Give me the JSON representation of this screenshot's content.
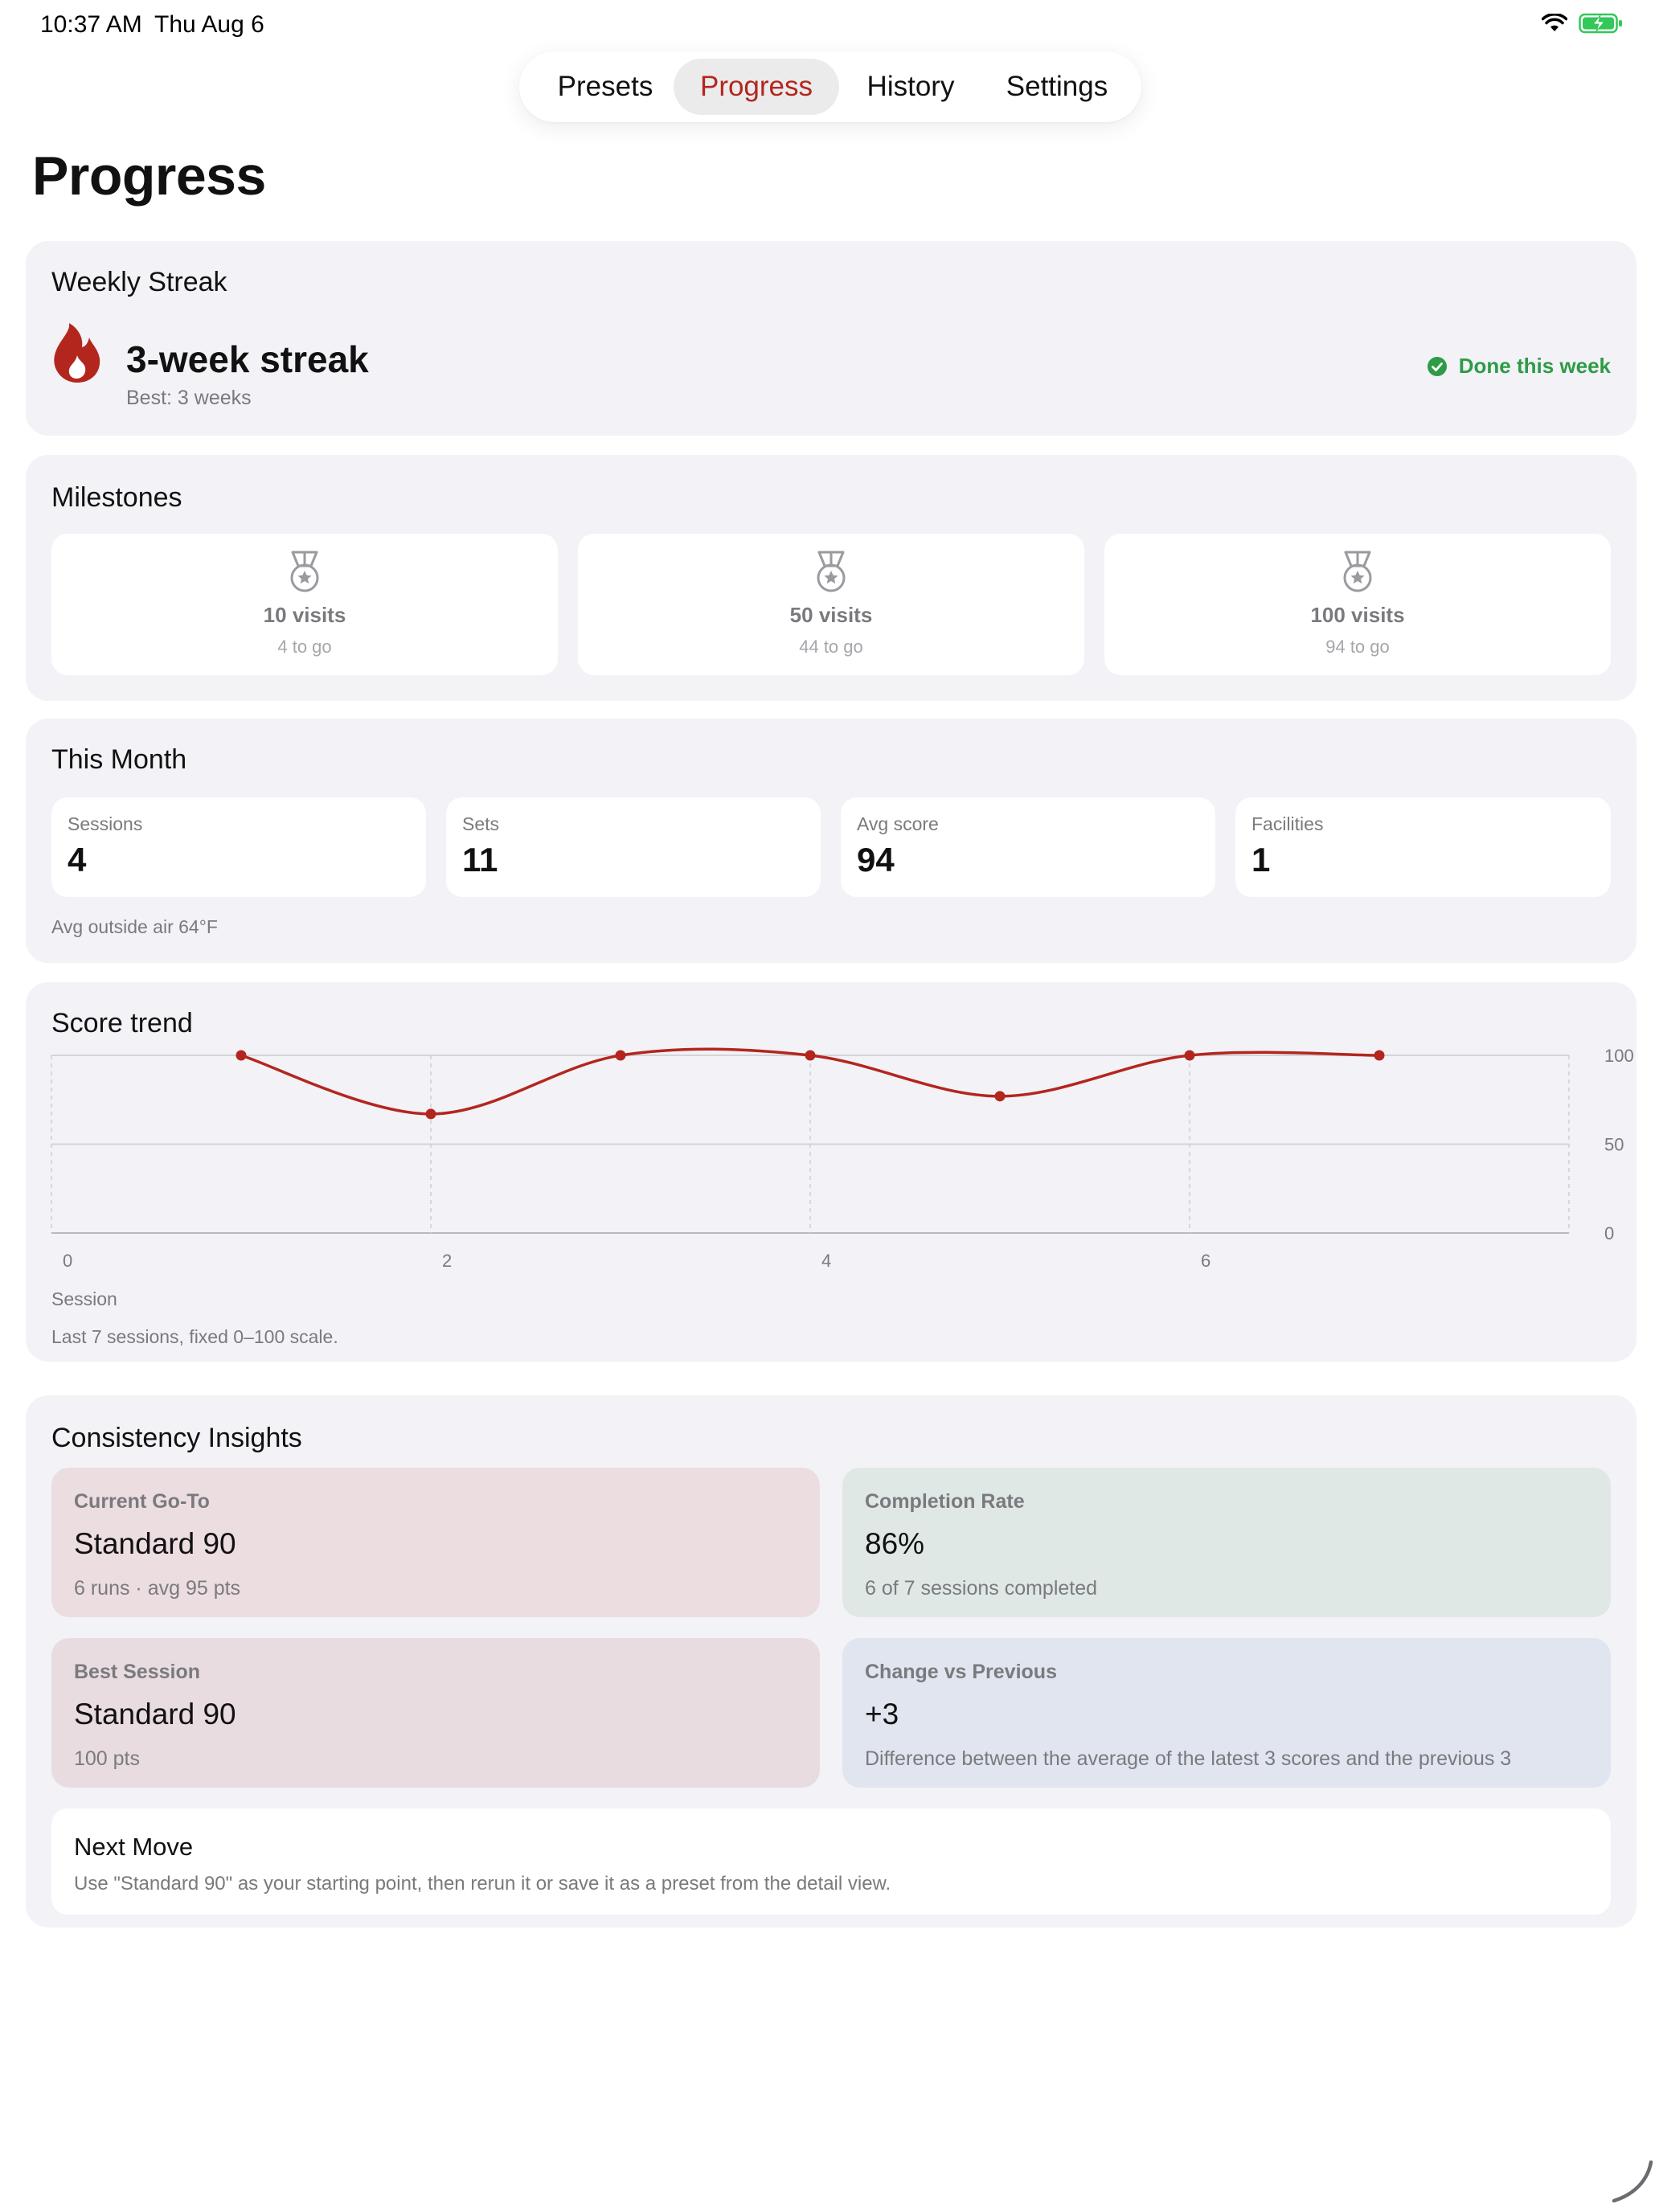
{
  "status_bar": {
    "time": "10:37 AM",
    "date": "Thu Aug 6",
    "icons": [
      "wifi-icon",
      "battery-charging-icon"
    ]
  },
  "tabs": [
    {
      "label": "Presets",
      "active": false
    },
    {
      "label": "Progress",
      "active": true
    },
    {
      "label": "History",
      "active": false
    },
    {
      "label": "Settings",
      "active": false
    }
  ],
  "page_title": "Progress",
  "streak": {
    "title": "Weekly Streak",
    "headline": "3-week streak",
    "best": "Best: 3 weeks",
    "status": "Done this week",
    "icon": "flame-icon"
  },
  "milestones": {
    "title": "Milestones",
    "items": [
      {
        "label": "10 visits",
        "sub": "4 to go",
        "icon": "medal-icon"
      },
      {
        "label": "50 visits",
        "sub": "44 to go",
        "icon": "medal-icon"
      },
      {
        "label": "100 visits",
        "sub": "94 to go",
        "icon": "medal-icon"
      }
    ]
  },
  "month": {
    "title": "This Month",
    "stats": [
      {
        "label": "Sessions",
        "value": "4"
      },
      {
        "label": "Sets",
        "value": "11"
      },
      {
        "label": "Avg score",
        "value": "94"
      },
      {
        "label": "Facilities",
        "value": "1"
      }
    ],
    "note": "Avg outside air 64°F"
  },
  "trend": {
    "title": "Score trend",
    "note": "Last 7 sessions, fixed 0–100 scale."
  },
  "chart_data": {
    "type": "line",
    "x": [
      1,
      2,
      3,
      4,
      5,
      6,
      7
    ],
    "values": [
      100,
      67,
      100,
      100,
      77,
      100,
      100
    ],
    "xlabel": "Session",
    "ylabel": "",
    "xlim": [
      0,
      8
    ],
    "ylim": [
      0,
      100
    ],
    "x_ticks": [
      0,
      2,
      4,
      6
    ],
    "y_ticks": [
      0,
      50,
      100
    ],
    "y_axis_side": "right",
    "grid": true,
    "color": "#b3261e"
  },
  "insights": {
    "title": "Consistency Insights",
    "cards": [
      {
        "label": "Current Go-To",
        "value": "Standard 90",
        "sub": "6 runs · avg 95 pts",
        "bg": "#ecdde1"
      },
      {
        "label": "Completion Rate",
        "value": "86%",
        "sub": "6 of 7 sessions completed",
        "bg": "#e0e8e6"
      },
      {
        "label": "Best Session",
        "value": "Standard 90",
        "sub": "100 pts",
        "bg": "#e8dce0"
      },
      {
        "label": "Change vs Previous",
        "value": "+3",
        "sub": "Difference between the average of the latest 3 scores and the previous 3",
        "bg": "#e0e5ef"
      }
    ],
    "next_move": {
      "title": "Next Move",
      "text": "Use \"Standard 90\" as your starting point, then rerun it or save it as a preset from the detail view."
    }
  }
}
